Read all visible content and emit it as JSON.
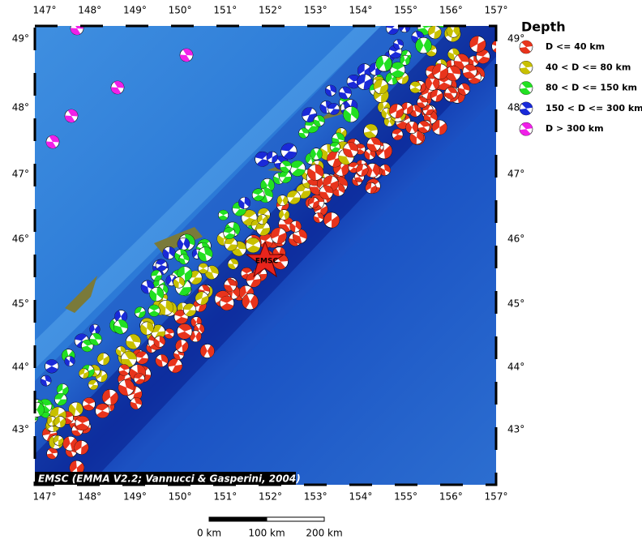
{
  "map": {
    "lon_labels": [
      "147°",
      "148°",
      "149°",
      "150°",
      "151°",
      "152°",
      "153°",
      "154°",
      "155°",
      "156°",
      "157°"
    ],
    "lat_labels": [
      "49°",
      "48°",
      "47°",
      "46°",
      "45°",
      "44°",
      "43°"
    ],
    "marker_label": "EMSC",
    "credit": "EMSC (EMMA V2.2; Vannucci & Gasperini, 2004)"
  },
  "legend": {
    "title": "Depth",
    "items": [
      "D <= 40 km",
      "40 < D <= 80 km",
      "80 < D <= 150 km",
      "150 < D <= 300 km",
      "D > 300 km"
    ]
  },
  "scale_bar": {
    "labels": [
      "0 km",
      "100 km",
      "200 km"
    ]
  }
}
